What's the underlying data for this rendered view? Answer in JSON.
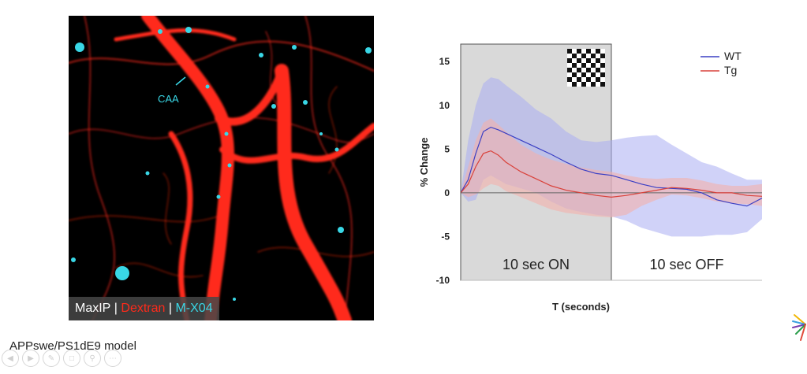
{
  "figure": {
    "caption": "APPswe/PS1dE9 model",
    "micrograph": {
      "legend": [
        {
          "text": "MaxIP",
          "color": "#ffffff"
        },
        {
          "text": " | ",
          "color": "#ffffff"
        },
        {
          "text": "Dextran",
          "color": "#ff2a1a"
        },
        {
          "text": " | ",
          "color": "#ffffff"
        },
        {
          "text": "M-X04",
          "color": "#39d7e6"
        }
      ],
      "annotation": "CAA",
      "colors": {
        "vessel": "#ff2a1a",
        "amyloid": "#39d7e6"
      }
    }
  },
  "chart_data": {
    "type": "line",
    "xlabel": "T (seconds)",
    "ylabel": "% Change",
    "ylim": [
      -10,
      17
    ],
    "yticks": [
      15,
      10,
      5,
      0,
      -5,
      -10
    ],
    "xlim": [
      0,
      20
    ],
    "stimulus": {
      "on_label": "10 sec ON",
      "off_label": "10 sec OFF",
      "on_range": [
        0,
        10
      ],
      "on_color": "#d9d9d9",
      "pattern": "checkerboard"
    },
    "legend_position": "top-right",
    "x": [
      0,
      0.5,
      1,
      1.5,
      2,
      2.5,
      3,
      4,
      5,
      6,
      7,
      8,
      9,
      10,
      11,
      12,
      13,
      14,
      15,
      16,
      17,
      18,
      19,
      20
    ],
    "series": [
      {
        "name": "WT",
        "color": "#3a3fc4",
        "band_color": "#a9adf2",
        "values": [
          0,
          1.5,
          4.5,
          7,
          7.5,
          7.2,
          6.8,
          6,
          5.2,
          4.4,
          3.5,
          2.7,
          2.2,
          2,
          1.5,
          1,
          0.6,
          0.5,
          0.4,
          0,
          -0.8,
          -1.2,
          -1.5,
          -0.6
        ],
        "upper": [
          0,
          6,
          10,
          12.5,
          13.2,
          13,
          12.3,
          11,
          9.5,
          8.5,
          7,
          6,
          5.8,
          6,
          6.3,
          6.5,
          6.6,
          5.5,
          4.5,
          3.5,
          3,
          2.2,
          1.5,
          1.5
        ],
        "lower": [
          0,
          -1,
          -0.8,
          1.5,
          2,
          1.5,
          1,
          0.5,
          0,
          -1,
          -1.8,
          -2.2,
          -2.5,
          -2.7,
          -3.2,
          -4,
          -4.5,
          -5,
          -5,
          -5,
          -4.8,
          -4.8,
          -4.5,
          -3
        ]
      },
      {
        "name": "Tg",
        "color": "#d9413a",
        "band_color": "#f3b0ab",
        "values": [
          0,
          1,
          3,
          4.5,
          4.8,
          4.3,
          3.5,
          2.4,
          1.6,
          0.8,
          0.3,
          0,
          -0.3,
          -0.5,
          -0.3,
          0,
          0.3,
          0.6,
          0.5,
          0.3,
          0,
          0,
          -0.3,
          -0.4
        ],
        "upper": [
          0,
          3,
          6,
          8,
          8.5,
          7.8,
          7,
          5.5,
          4.5,
          3.8,
          3.3,
          2.9,
          2.6,
          2.4,
          2,
          1.7,
          1.6,
          1.7,
          1.7,
          1.4,
          1,
          0.8,
          0.8,
          1
        ],
        "lower": [
          0,
          -0.5,
          -0.2,
          0.5,
          1,
          0.8,
          0.2,
          -0.5,
          -1.2,
          -1.9,
          -2.3,
          -2.5,
          -2.7,
          -2.8,
          -2.5,
          -1.5,
          -0.8,
          -0.2,
          -0.3,
          -0.6,
          -1,
          -1.2,
          -1.3,
          -1.5
        ]
      }
    ]
  }
}
